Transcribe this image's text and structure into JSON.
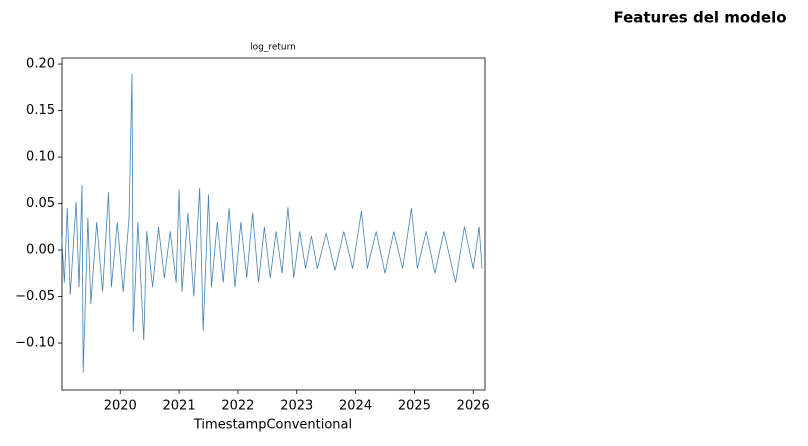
{
  "chart_data": {
    "type": "line",
    "suptitle": "Features del modelo",
    "title": "log_return",
    "xlabel": "TimestampConventional",
    "x": [
      2019.0,
      2019.05,
      2019.1,
      2019.15,
      2019.25,
      2019.3,
      2019.35,
      2019.37,
      2019.45,
      2019.5,
      2019.6,
      2019.7,
      2019.8,
      2019.85,
      2019.95,
      2020.05,
      2020.15,
      2020.2,
      2020.22,
      2020.3,
      2020.4,
      2020.45,
      2020.55,
      2020.65,
      2020.75,
      2020.85,
      2020.95,
      2021.0,
      2021.05,
      2021.15,
      2021.25,
      2021.35,
      2021.41,
      2021.5,
      2021.55,
      2021.65,
      2021.75,
      2021.85,
      2021.95,
      2022.05,
      2022.15,
      2022.25,
      2022.35,
      2022.45,
      2022.55,
      2022.65,
      2022.75,
      2022.85,
      2022.95,
      2023.05,
      2023.15,
      2023.25,
      2023.35,
      2023.5,
      2023.65,
      2023.8,
      2023.95,
      2024.1,
      2024.2,
      2024.35,
      2024.5,
      2024.65,
      2024.8,
      2024.95,
      2025.05,
      2025.2,
      2025.35,
      2025.5,
      2025.7,
      2025.85,
      2026.0,
      2026.1,
      2026.15
    ],
    "series": [
      {
        "name": "log_return",
        "color": "#4682b4",
        "values": [
          0.02,
          -0.035,
          0.045,
          -0.048,
          0.052,
          -0.04,
          0.07,
          -0.132,
          0.035,
          -0.058,
          0.03,
          -0.045,
          0.062,
          -0.04,
          0.03,
          -0.045,
          0.035,
          0.19,
          -0.088,
          0.03,
          -0.097,
          0.02,
          -0.04,
          0.025,
          -0.03,
          0.02,
          -0.035,
          0.065,
          -0.045,
          0.04,
          -0.05,
          0.067,
          -0.087,
          0.06,
          -0.04,
          0.03,
          -0.035,
          0.045,
          -0.04,
          0.03,
          -0.03,
          0.04,
          -0.035,
          0.025,
          -0.03,
          0.02,
          -0.025,
          0.046,
          -0.03,
          0.02,
          -0.02,
          0.015,
          -0.02,
          0.018,
          -0.022,
          0.02,
          -0.02,
          0.042,
          -0.02,
          0.02,
          -0.025,
          0.02,
          -0.02,
          0.045,
          -0.02,
          0.02,
          -0.025,
          0.02,
          -0.035,
          0.025,
          -0.02,
          0.025,
          -0.02
        ]
      }
    ],
    "xlim": [
      2019.01,
      2026.2
    ],
    "ylim": [
      -0.1505,
      0.2065
    ],
    "xticks": [
      2020,
      2021,
      2022,
      2023,
      2024,
      2025,
      2026
    ],
    "yticks": [
      {
        "value": -0.1,
        "label": "−0.10"
      },
      {
        "value": -0.05,
        "label": "−0.05"
      },
      {
        "value": 0,
        "label": "0.00"
      },
      {
        "value": 0.05,
        "label": "0.05"
      },
      {
        "value": 0.1,
        "label": "0.10"
      },
      {
        "value": 0.15,
        "label": "0.15"
      },
      {
        "value": 0.2,
        "label": "0.20"
      }
    ]
  }
}
